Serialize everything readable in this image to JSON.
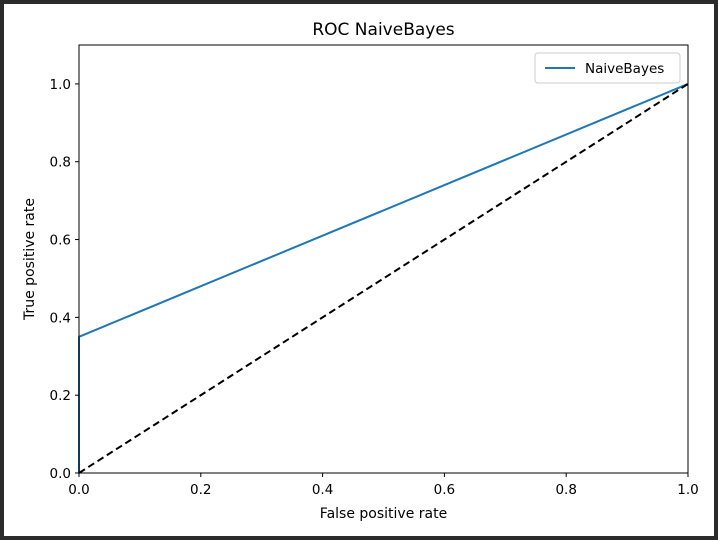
{
  "chart_data": {
    "type": "line",
    "title": "ROC NaiveBayes",
    "xlabel": "False positive rate",
    "ylabel": "True positive rate",
    "xlim": [
      0.0,
      1.0
    ],
    "ylim": [
      0.0,
      1.1
    ],
    "xticks": [
      "0.0",
      "0.2",
      "0.4",
      "0.6",
      "0.8",
      "1.0"
    ],
    "yticks": [
      "0.0",
      "0.2",
      "0.4",
      "0.6",
      "0.8",
      "1.0"
    ],
    "grid": false,
    "legend_position": "top-right",
    "series": [
      {
        "name": "NaiveBayes",
        "color": "#1f77b4",
        "style": "solid",
        "x": [
          0.0,
          0.0,
          1.0
        ],
        "y": [
          0.0,
          0.35,
          1.0
        ]
      },
      {
        "color": "#000000",
        "style": "dashed",
        "x": [
          0.0,
          1.0
        ],
        "y": [
          0.0,
          1.0
        ]
      }
    ]
  }
}
